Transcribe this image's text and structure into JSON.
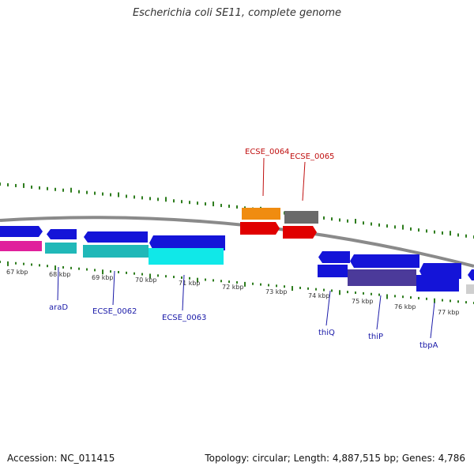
{
  "title": "Escherichia coli SE11, complete genome",
  "footer": {
    "accession": "Accession: NC_011415",
    "summary": "Topology: circular; Length: 4,887,515 bp; Genes: 4,786"
  },
  "colors": {
    "backbone": "#8a8a8a",
    "tick": "#2e7d1e",
    "label_blue": "#1a1aa8",
    "label_red": "#c01010"
  },
  "scale_labels": [
    "67 kbp",
    "68 kbp",
    "69 kbp",
    "70 kbp",
    "71 kbp",
    "72 kbp",
    "73 kbp",
    "74 kbp",
    "75 kbp",
    "76 kbp",
    "77 kbp"
  ],
  "gene_labels": [
    {
      "text": "araD",
      "color": "blue"
    },
    {
      "text": "ECSE_0062",
      "color": "blue"
    },
    {
      "text": "ECSE_0063",
      "color": "blue"
    },
    {
      "text": "ECSE_0064",
      "color": "red"
    },
    {
      "text": "ECSE_0065",
      "color": "red"
    },
    {
      "text": "thiQ",
      "color": "blue"
    },
    {
      "text": "thiP",
      "color": "blue"
    },
    {
      "text": "tbpA",
      "color": "blue"
    }
  ],
  "feature_colors": {
    "cds_forward": "#1414d8",
    "cds_reverse": "#e00000",
    "orange": "#f08c10",
    "gray": "#6a6a6a",
    "magenta": "#e0209c",
    "teal": "#20b8b8",
    "cyan": "#10e8e8",
    "purple": "#4b3a9a",
    "lightgray": "#cfcfcf"
  }
}
